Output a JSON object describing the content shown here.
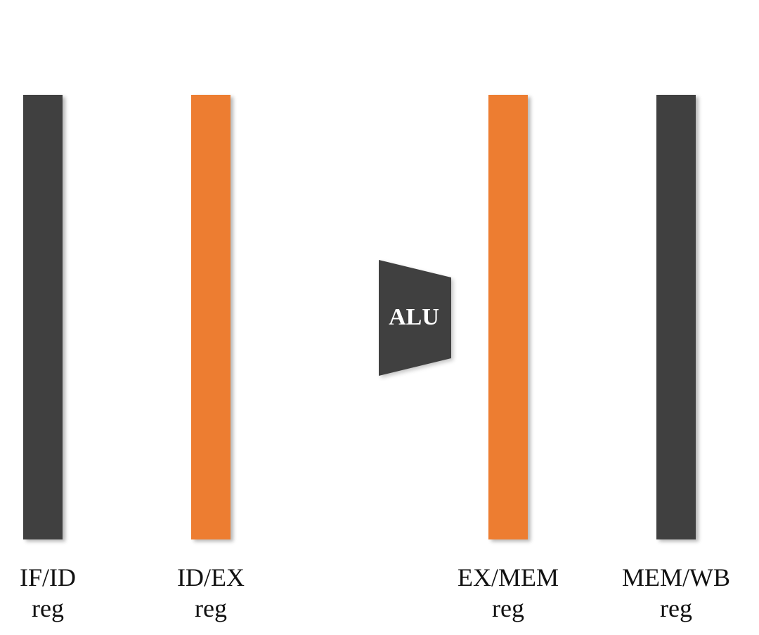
{
  "colors": {
    "dark": "#404040",
    "orange": "#ED7D31",
    "text": "#111111",
    "alu_text": "#ffffff"
  },
  "registers": [
    {
      "id": "if-id",
      "name_line": "IF/ID",
      "sub_line": "reg",
      "color": "#404040"
    },
    {
      "id": "id-ex",
      "name_line": "ID/EX",
      "sub_line": "reg",
      "color": "#ED7D31"
    },
    {
      "id": "ex-mem",
      "name_line": "EX/MEM",
      "sub_line": "reg",
      "color": "#ED7D31"
    },
    {
      "id": "mem-wb",
      "name_line": "MEM/WB",
      "sub_line": "reg",
      "color": "#404040"
    }
  ],
  "alu": {
    "label": "ALU",
    "color": "#404040"
  }
}
